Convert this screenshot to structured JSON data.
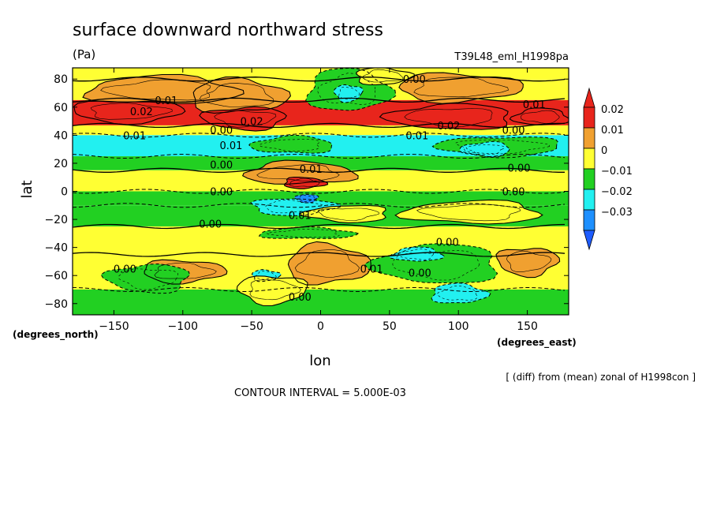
{
  "chart_data": {
    "type": "heatmap",
    "title": "surface downward northward stress",
    "units": "(Pa)",
    "run_label": "T39L48_eml_H1998pa",
    "xlabel": "lon",
    "ylabel": "lat",
    "x_unit_label": "(degrees_east)",
    "y_unit_label": "(degrees_north)",
    "xlim": [
      -180,
      180
    ],
    "ylim": [
      -88,
      88
    ],
    "x_ticks": [
      -150,
      -100,
      -50,
      0,
      50,
      100,
      150
    ],
    "y_ticks": [
      -80,
      -60,
      -40,
      -20,
      0,
      20,
      40,
      60,
      80
    ],
    "grid": false,
    "legend_placement": "right",
    "colorbar": {
      "labels": [
        "0.02",
        "0.01",
        "0",
        "-0.01",
        "-0.02",
        "-0.03"
      ],
      "bins": [
        {
          "from": 0.015,
          "to": 0.02,
          "color": "#e8251c"
        },
        {
          "from": 0.01,
          "to": 0.015,
          "color": "#f0a030"
        },
        {
          "from": 0.0,
          "to": 0.01,
          "color": "#ffff33"
        },
        {
          "from": -0.01,
          "to": 0.0,
          "color": "#22d022"
        },
        {
          "from": -0.02,
          "to": -0.01,
          "color": "#22f0f0"
        },
        {
          "from": -0.03,
          "to": -0.02,
          "color": "#1e90ff"
        }
      ],
      "top_arrow_color": "#e8251c",
      "bottom_arrow_color": "#1e5cff"
    },
    "zonal_bands": [
      {
        "lat_from": 80,
        "lat_to": 88,
        "value": 0.004
      },
      {
        "lat_from": 65,
        "lat_to": 80,
        "value": 0.006
      },
      {
        "lat_from": 47,
        "lat_to": 65,
        "value": 0.016
      },
      {
        "lat_from": 40,
        "lat_to": 47,
        "value": 0.003
      },
      {
        "lat_from": 25,
        "lat_to": 40,
        "value": -0.012
      },
      {
        "lat_from": 15,
        "lat_to": 25,
        "value": -0.004
      },
      {
        "lat_from": 0,
        "lat_to": 15,
        "value": 0.004
      },
      {
        "lat_from": -10,
        "lat_to": 0,
        "value": -0.004
      },
      {
        "lat_from": -25,
        "lat_to": -10,
        "value": -0.004
      },
      {
        "lat_from": -45,
        "lat_to": -25,
        "value": 0.004
      },
      {
        "lat_from": -70,
        "lat_to": -45,
        "value": 0.004
      },
      {
        "lat_from": -88,
        "lat_to": -70,
        "value": -0.004
      }
    ],
    "anomalies": [
      {
        "lon": -115,
        "lat": 72,
        "rlon": 55,
        "rlat": 10,
        "value": 0.012
      },
      {
        "lon": -60,
        "lat": 68,
        "rlon": 35,
        "rlat": 12,
        "value": 0.012
      },
      {
        "lon": 100,
        "lat": 74,
        "rlon": 45,
        "rlat": 10,
        "value": 0.012
      },
      {
        "lon": -140,
        "lat": 57,
        "rlon": 40,
        "rlat": 8,
        "value": 0.018
      },
      {
        "lon": -55,
        "lat": 52,
        "rlon": 30,
        "rlat": 8,
        "value": 0.018
      },
      {
        "lon": 95,
        "lat": 53,
        "rlon": 45,
        "rlat": 9,
        "value": 0.018
      },
      {
        "lon": 160,
        "lat": 53,
        "rlon": 20,
        "rlat": 6,
        "value": 0.018
      },
      {
        "lon": 20,
        "lat": 72,
        "rlon": 30,
        "rlat": 15,
        "value": -0.004
      },
      {
        "lon": 45,
        "lat": 82,
        "rlon": 20,
        "rlat": 6,
        "value": 0.004
      },
      {
        "lon": 20,
        "lat": 70,
        "rlon": 10,
        "rlat": 6,
        "value": -0.012
      },
      {
        "lon": 130,
        "lat": 32,
        "rlon": 45,
        "rlat": 7,
        "value": -0.004
      },
      {
        "lon": 120,
        "lat": 30,
        "rlon": 18,
        "rlat": 5,
        "value": -0.012
      },
      {
        "lon": -20,
        "lat": 33,
        "rlon": 30,
        "rlat": 6,
        "value": -0.004
      },
      {
        "lon": -15,
        "lat": 13,
        "rlon": 40,
        "rlat": 8,
        "value": 0.012
      },
      {
        "lon": -12,
        "lat": 6,
        "rlon": 15,
        "rlat": 4,
        "value": 0.018
      },
      {
        "lon": -20,
        "lat": -11,
        "rlon": 30,
        "rlat": 6,
        "value": -0.012
      },
      {
        "lon": -10,
        "lat": -5,
        "rlon": 8,
        "rlat": 3,
        "value": -0.025
      },
      {
        "lon": 20,
        "lat": -16,
        "rlon": 30,
        "rlat": 6,
        "value": 0.004
      },
      {
        "lon": 110,
        "lat": -15,
        "rlon": 50,
        "rlat": 8,
        "value": 0.004
      },
      {
        "lon": -10,
        "lat": -30,
        "rlon": 35,
        "rlat": 4,
        "value": -0.004
      },
      {
        "lon": 5,
        "lat": -52,
        "rlon": 30,
        "rlat": 14,
        "value": 0.012
      },
      {
        "lon": -100,
        "lat": -57,
        "rlon": 30,
        "rlat": 8,
        "value": 0.012
      },
      {
        "lon": 150,
        "lat": -50,
        "rlon": 22,
        "rlat": 10,
        "value": 0.012
      },
      {
        "lon": -125,
        "lat": -62,
        "rlon": 30,
        "rlat": 10,
        "value": -0.004
      },
      {
        "lon": 85,
        "lat": -52,
        "rlon": 45,
        "rlat": 14,
        "value": -0.004
      },
      {
        "lon": 70,
        "lat": -45,
        "rlon": 18,
        "rlat": 5,
        "value": -0.012
      },
      {
        "lon": 100,
        "lat": -73,
        "rlon": 20,
        "rlat": 7,
        "value": -0.012
      },
      {
        "lon": -40,
        "lat": -60,
        "rlon": 10,
        "rlat": 4,
        "value": -0.012
      },
      {
        "lon": -35,
        "lat": -70,
        "rlon": 25,
        "rlat": 10,
        "value": 0.004
      }
    ],
    "contour_labels": [
      {
        "text": "0.01",
        "lon": -112,
        "lat": 65
      },
      {
        "text": "0.02",
        "lon": -130,
        "lat": 57
      },
      {
        "text": "0.02",
        "lon": -50,
        "lat": 50
      },
      {
        "text": "0.00",
        "lon": -72,
        "lat": 44
      },
      {
        "text": "0.01",
        "lon": -135,
        "lat": 40
      },
      {
        "text": "0.01",
        "lon": -65,
        "lat": 33
      },
      {
        "text": "0.00",
        "lon": 68,
        "lat": 80
      },
      {
        "text": "0.01",
        "lon": 155,
        "lat": 62
      },
      {
        "text": "0.02",
        "lon": 93,
        "lat": 47
      },
      {
        "text": "0.01",
        "lon": 70,
        "lat": 40
      },
      {
        "text": "0.00",
        "lon": 140,
        "lat": 44
      },
      {
        "text": "0.00",
        "lon": -72,
        "lat": 19
      },
      {
        "text": "0.01",
        "lon": -7,
        "lat": 16
      },
      {
        "text": "0.00",
        "lon": 144,
        "lat": 17
      },
      {
        "text": "0.00",
        "lon": -72,
        "lat": 0
      },
      {
        "text": "0.00",
        "lon": 140,
        "lat": 0
      },
      {
        "text": "0.01",
        "lon": -15,
        "lat": -17
      },
      {
        "text": "0.00",
        "lon": -80,
        "lat": -23
      },
      {
        "text": "0.00",
        "lon": 92,
        "lat": -36
      },
      {
        "text": "0.00",
        "lon": -142,
        "lat": -55
      },
      {
        "text": "0.01",
        "lon": 37,
        "lat": -55
      },
      {
        "text": "0.00",
        "lon": 72,
        "lat": -58
      },
      {
        "text": "0.00",
        "lon": -15,
        "lat": -75
      }
    ],
    "annotations": [
      "[ (diff) from (mean) zonal of H1998con ]",
      "CONTOUR INTERVAL = 5.000E-03"
    ]
  }
}
